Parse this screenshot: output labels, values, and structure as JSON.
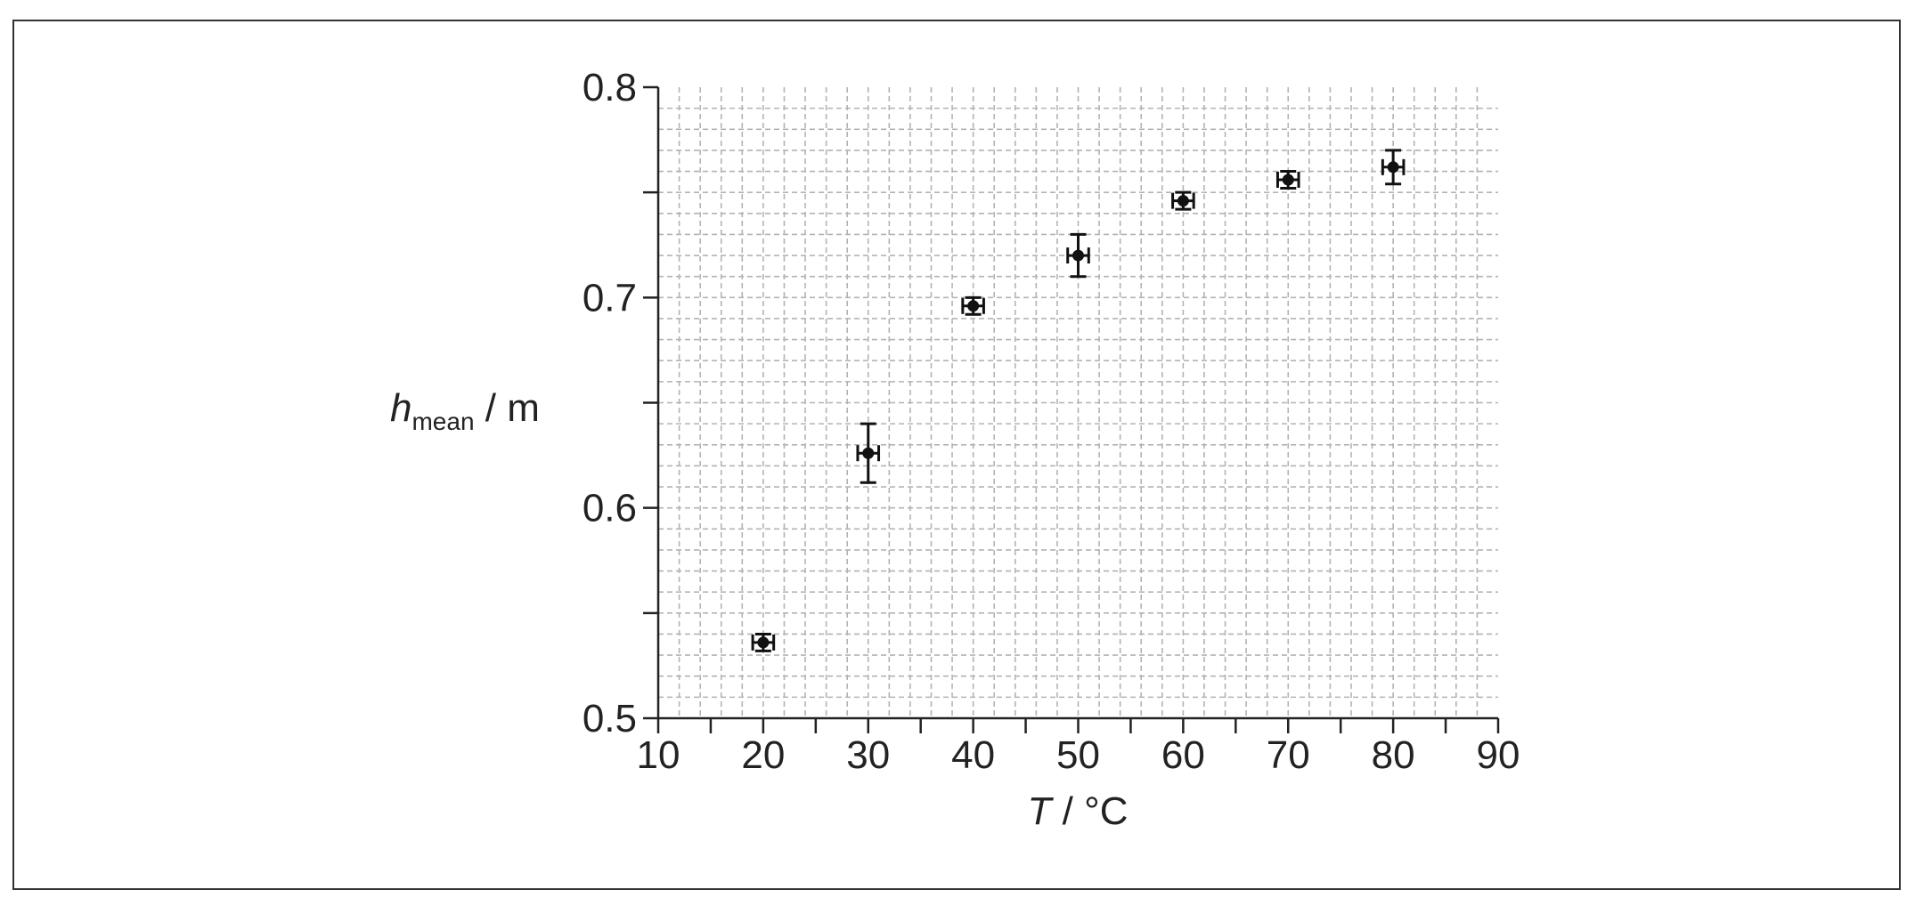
{
  "chart_data": {
    "type": "scatter",
    "xlabel": {
      "symbol": "T",
      "unit": " / °C"
    },
    "ylabel": {
      "symbol": "h",
      "subscript": "mean",
      "unit": " / m"
    },
    "xlim": [
      10,
      90
    ],
    "ylim": [
      0.5,
      0.8
    ],
    "xticks": [
      10,
      20,
      30,
      40,
      50,
      60,
      70,
      80,
      90
    ],
    "xtick_labels": [
      "10",
      "20",
      "30",
      "40",
      "50",
      "60",
      "70",
      "80",
      "90"
    ],
    "yticks": [
      0.5,
      0.6,
      0.7,
      0.8
    ],
    "ytick_labels": [
      "0.5",
      "0.6",
      "0.7",
      "0.8"
    ],
    "grid": true,
    "points": [
      {
        "x": 20,
        "y": 0.536,
        "xerr": 1,
        "yerr": 0.004
      },
      {
        "x": 30,
        "y": 0.626,
        "xerr": 1,
        "yerr": 0.014
      },
      {
        "x": 40,
        "y": 0.696,
        "xerr": 1,
        "yerr": 0.004
      },
      {
        "x": 50,
        "y": 0.72,
        "xerr": 1,
        "yerr": 0.01
      },
      {
        "x": 60,
        "y": 0.746,
        "xerr": 1,
        "yerr": 0.004
      },
      {
        "x": 70,
        "y": 0.756,
        "xerr": 1,
        "yerr": 0.004
      },
      {
        "x": 80,
        "y": 0.762,
        "xerr": 1,
        "yerr": 0.008
      }
    ]
  }
}
